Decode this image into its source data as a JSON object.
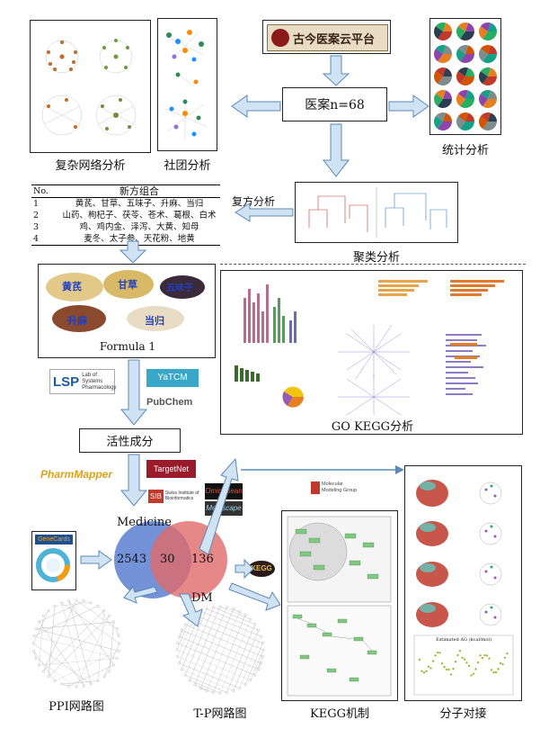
{
  "platform": {
    "title": "古今医案云平台"
  },
  "center": {
    "label": "医案n=68"
  },
  "sections": {
    "complex_network": "复杂网络分析",
    "community": "社团分析",
    "statistics": "统计分析",
    "prescription": "复方分析",
    "clustering": "聚类分析",
    "active_ingredients": "活性成分",
    "go_kegg": "GO KEGG分析",
    "ppi": "PPI网路图",
    "tp": "T-P网路图",
    "kegg_mech": "KEGG机制",
    "docking": "分子对接"
  },
  "formula_table": {
    "col_no": "No.",
    "col_title": "新方组合",
    "rows": [
      {
        "no": "1",
        "herbs": "黄芪、甘草、五味子、升麻、当归"
      },
      {
        "no": "2",
        "herbs": "山药、枸杞子、茯苓、苍术、葛根、白术"
      },
      {
        "no": "3",
        "herbs": "鸡、鸡内金、泽泻、大黄、知母"
      },
      {
        "no": "4",
        "herbs": "麦冬、太子参、天花粉、地黄"
      }
    ]
  },
  "formula_photo": {
    "caption": "Formula 1",
    "herbs": [
      "黄芪",
      "甘草",
      "五味子",
      "升麻",
      "当归"
    ]
  },
  "databases": {
    "lsp": "LSP",
    "lsp_sub1": "Lab of Systems",
    "lsp_sub2": "Pharmacology",
    "yatcm": "YaTCM",
    "pubchem": "PubChem",
    "pharmmapper": "PharmMapper",
    "targetnet": "TargetNet",
    "sib": "SIB",
    "sib_sub": "Swiss Institute of Bioinformatics",
    "omicsbean": "OmicsBean",
    "metascape": "Metascape",
    "genecards": "GeneCards",
    "molecular_group": "Molecular Modeling Group",
    "kegg": "KEGG"
  },
  "venn": {
    "left_label": "Medicine",
    "right_label": "DM",
    "left_only": "2543",
    "overlap": "30",
    "right_only": "136"
  },
  "docking_chart": {
    "title": "Estimated ΔG (kcal/mol)"
  },
  "colors": {
    "arrow_fill": "#cfe3f5",
    "arrow_stroke": "#5b88b5",
    "venn_left": "#5b7fd0",
    "venn_right": "#e06a6a",
    "network_purple": "#6b4fc4"
  }
}
